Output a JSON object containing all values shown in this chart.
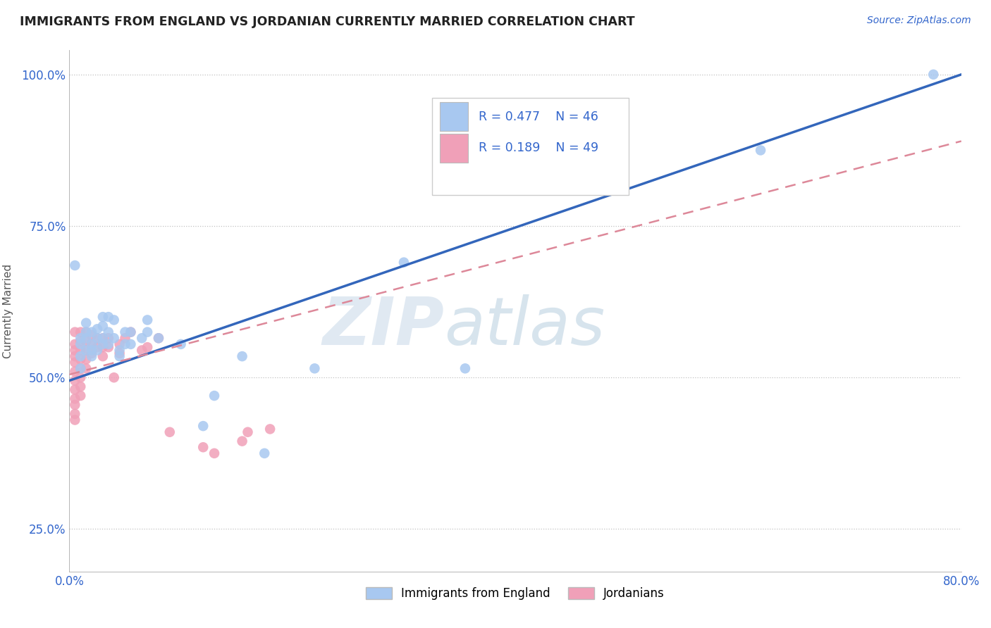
{
  "title": "IMMIGRANTS FROM ENGLAND VS JORDANIAN CURRENTLY MARRIED CORRELATION CHART",
  "source": "Source: ZipAtlas.com",
  "ylabel_label": "Currently Married",
  "xmin": 0.0,
  "xmax": 0.8,
  "ymin": 0.18,
  "ymax": 1.04,
  "color_blue": "#A8C8F0",
  "color_pink": "#F0A0B8",
  "color_line_blue": "#3366BB",
  "color_line_pink": "#DD8899",
  "label1": "Immigrants from England",
  "label2": "Jordanians",
  "watermark_zip": "ZIP",
  "watermark_atlas": "atlas",
  "blue_line_x": [
    0.0,
    0.8
  ],
  "blue_line_y": [
    0.495,
    1.0
  ],
  "pink_line_x": [
    0.0,
    0.8
  ],
  "pink_line_y": [
    0.505,
    0.89
  ],
  "scatter_blue": [
    [
      0.005,
      0.685
    ],
    [
      0.01,
      0.515
    ],
    [
      0.01,
      0.535
    ],
    [
      0.01,
      0.555
    ],
    [
      0.01,
      0.565
    ],
    [
      0.015,
      0.545
    ],
    [
      0.015,
      0.565
    ],
    [
      0.015,
      0.575
    ],
    [
      0.015,
      0.59
    ],
    [
      0.02,
      0.535
    ],
    [
      0.02,
      0.545
    ],
    [
      0.02,
      0.555
    ],
    [
      0.02,
      0.575
    ],
    [
      0.025,
      0.545
    ],
    [
      0.025,
      0.565
    ],
    [
      0.025,
      0.58
    ],
    [
      0.03,
      0.555
    ],
    [
      0.03,
      0.565
    ],
    [
      0.03,
      0.585
    ],
    [
      0.03,
      0.6
    ],
    [
      0.035,
      0.555
    ],
    [
      0.035,
      0.575
    ],
    [
      0.035,
      0.6
    ],
    [
      0.04,
      0.565
    ],
    [
      0.04,
      0.595
    ],
    [
      0.045,
      0.535
    ],
    [
      0.045,
      0.545
    ],
    [
      0.05,
      0.555
    ],
    [
      0.05,
      0.575
    ],
    [
      0.055,
      0.555
    ],
    [
      0.055,
      0.575
    ],
    [
      0.065,
      0.565
    ],
    [
      0.07,
      0.575
    ],
    [
      0.07,
      0.595
    ],
    [
      0.08,
      0.565
    ],
    [
      0.1,
      0.555
    ],
    [
      0.12,
      0.42
    ],
    [
      0.13,
      0.47
    ],
    [
      0.155,
      0.535
    ],
    [
      0.175,
      0.375
    ],
    [
      0.22,
      0.515
    ],
    [
      0.3,
      0.69
    ],
    [
      0.355,
      0.515
    ],
    [
      0.62,
      0.875
    ],
    [
      0.775,
      1.0
    ]
  ],
  "scatter_pink": [
    [
      0.005,
      0.575
    ],
    [
      0.005,
      0.555
    ],
    [
      0.005,
      0.545
    ],
    [
      0.005,
      0.535
    ],
    [
      0.005,
      0.525
    ],
    [
      0.005,
      0.51
    ],
    [
      0.005,
      0.495
    ],
    [
      0.005,
      0.48
    ],
    [
      0.005,
      0.465
    ],
    [
      0.005,
      0.455
    ],
    [
      0.005,
      0.44
    ],
    [
      0.005,
      0.43
    ],
    [
      0.01,
      0.575
    ],
    [
      0.01,
      0.56
    ],
    [
      0.01,
      0.545
    ],
    [
      0.01,
      0.53
    ],
    [
      0.01,
      0.515
    ],
    [
      0.01,
      0.5
    ],
    [
      0.01,
      0.485
    ],
    [
      0.01,
      0.47
    ],
    [
      0.015,
      0.575
    ],
    [
      0.015,
      0.56
    ],
    [
      0.015,
      0.545
    ],
    [
      0.015,
      0.53
    ],
    [
      0.015,
      0.515
    ],
    [
      0.02,
      0.57
    ],
    [
      0.02,
      0.555
    ],
    [
      0.02,
      0.54
    ],
    [
      0.025,
      0.565
    ],
    [
      0.025,
      0.55
    ],
    [
      0.03,
      0.565
    ],
    [
      0.03,
      0.55
    ],
    [
      0.03,
      0.535
    ],
    [
      0.035,
      0.565
    ],
    [
      0.035,
      0.55
    ],
    [
      0.04,
      0.5
    ],
    [
      0.045,
      0.555
    ],
    [
      0.045,
      0.54
    ],
    [
      0.05,
      0.565
    ],
    [
      0.055,
      0.575
    ],
    [
      0.065,
      0.545
    ],
    [
      0.07,
      0.55
    ],
    [
      0.08,
      0.565
    ],
    [
      0.09,
      0.41
    ],
    [
      0.12,
      0.385
    ],
    [
      0.13,
      0.375
    ],
    [
      0.155,
      0.395
    ],
    [
      0.16,
      0.41
    ],
    [
      0.18,
      0.415
    ]
  ]
}
